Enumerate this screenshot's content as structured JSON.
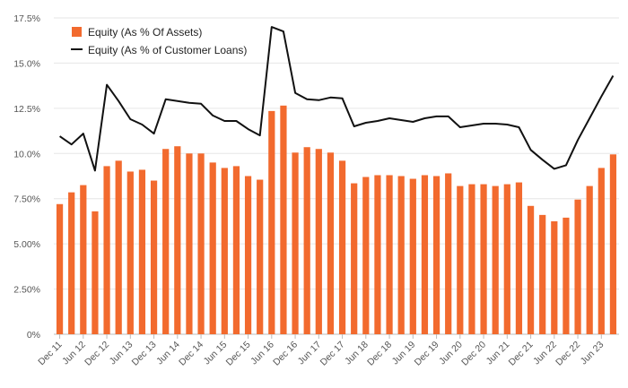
{
  "chart_data": {
    "type": "bar",
    "colors": {
      "bar": "#f26a2e",
      "line": "#111111",
      "grid": "#e6e6e6"
    },
    "legend": [
      {
        "label": "Equity (As % Of Assets)",
        "kind": "bar"
      },
      {
        "label": "Equity (As % of Customer Loans)",
        "kind": "line"
      }
    ],
    "legend_placement": "top-left",
    "grid": true,
    "ylim": [
      0,
      17.5
    ],
    "yticks": [
      "0%",
      "2.50%",
      "5.00%",
      "7.50%",
      "10.0%",
      "12.5%",
      "15.0%",
      "17.5%"
    ],
    "x": [
      "Dec 11",
      "Mar 12",
      "Jun 12",
      "Sep 12",
      "Dec 12",
      "Mar 13",
      "Jun 13",
      "Sep 13",
      "Dec 13",
      "Mar 14",
      "Jun 14",
      "Sep 14",
      "Dec 14",
      "Mar 15",
      "Jun 15",
      "Sep 15",
      "Dec 15",
      "Mar 16",
      "Jun 16",
      "Sep 16",
      "Dec 16",
      "Mar 17",
      "Jun 17",
      "Sep 17",
      "Dec 17",
      "Mar 18",
      "Jun 18",
      "Sep 18",
      "Dec 18",
      "Mar 19",
      "Jun 19",
      "Sep 19",
      "Dec 19",
      "Mar 20",
      "Jun 20",
      "Sep 20",
      "Dec 20",
      "Mar 21",
      "Jun 21",
      "Sep 21",
      "Dec 21",
      "Mar 22",
      "Jun 22",
      "Sep 22",
      "Dec 22",
      "Mar 23",
      "Jun 23",
      "Sep 23"
    ],
    "xticks_shown": [
      "Dec 11",
      "Jun 12",
      "Dec 12",
      "Jun 13",
      "Dec 13",
      "Jun 14",
      "Dec 14",
      "Jun 15",
      "Dec 15",
      "Jun 16",
      "Dec 16",
      "Jun 17",
      "Dec 17",
      "Jun 18",
      "Dec 18",
      "Jun 19",
      "Dec 19",
      "Jun 20",
      "Dec 20",
      "Jun 21",
      "Dec 21",
      "Jun 22",
      "Dec 22",
      "Jun 23"
    ],
    "series": [
      {
        "name": "Equity (As % Of Assets)",
        "type": "bar",
        "values": [
          7.2,
          7.85,
          8.25,
          6.8,
          9.3,
          9.6,
          9.0,
          9.1,
          8.5,
          10.25,
          10.4,
          10.0,
          10.0,
          9.5,
          9.2,
          9.3,
          8.75,
          8.55,
          12.35,
          12.65,
          10.05,
          10.35,
          10.25,
          10.05,
          9.6,
          8.35,
          8.7,
          8.8,
          8.8,
          8.75,
          8.6,
          8.8,
          8.75,
          8.9,
          8.2,
          8.3,
          8.3,
          8.2,
          8.3,
          8.4,
          7.1,
          6.6,
          6.25,
          6.45,
          7.45,
          8.2,
          9.2,
          9.95
        ]
      },
      {
        "name": "Equity (As % of Customer Loans)",
        "type": "line",
        "values": [
          10.95,
          10.5,
          11.1,
          9.05,
          13.8,
          12.9,
          11.9,
          11.6,
          11.1,
          13.0,
          12.9,
          12.8,
          12.75,
          12.1,
          11.8,
          11.8,
          11.35,
          11.0,
          17.0,
          16.75,
          13.35,
          13.0,
          12.95,
          13.1,
          13.05,
          11.5,
          11.7,
          11.8,
          11.95,
          11.85,
          11.75,
          11.95,
          12.05,
          12.05,
          11.45,
          11.55,
          11.65,
          11.65,
          11.6,
          11.45,
          10.2,
          9.65,
          9.15,
          9.35,
          10.75,
          11.95,
          13.15,
          14.3
        ]
      }
    ]
  }
}
